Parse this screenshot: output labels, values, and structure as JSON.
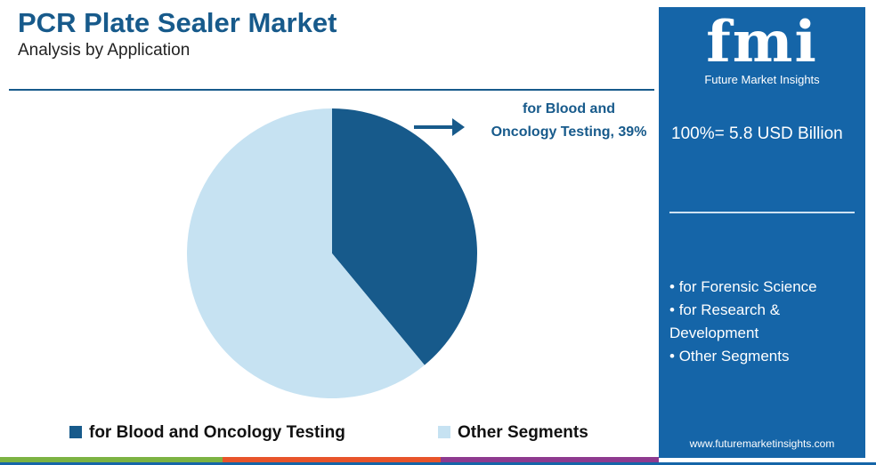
{
  "chart_data": {
    "type": "pie",
    "title": "PCR Plate Sealer Market",
    "subtitle": "Analysis by Application",
    "categories": [
      "for Blood and Oncology Testing",
      "Other Segments"
    ],
    "values": [
      39,
      61
    ],
    "colors": [
      "#175a8b",
      "#c6e2f2"
    ],
    "annotation": "for Blood and Oncology Testing, 39%",
    "legend": "bottom"
  },
  "panel": {
    "logo": "fmi",
    "brand": "Future Market Insights",
    "total": "100%= 5.8 USD Billion",
    "segments": [
      "for Forensic Science",
      "for Research & Development",
      "Other Segments"
    ],
    "website": "www.futuremarketinsights.com"
  }
}
